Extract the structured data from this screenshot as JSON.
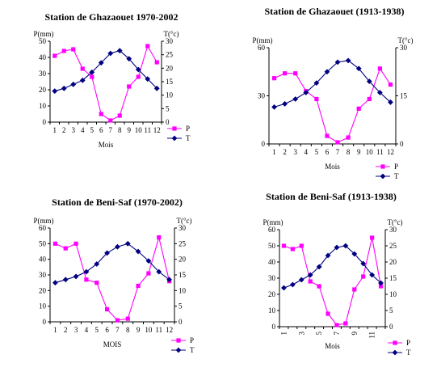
{
  "chart_data": [
    {
      "type": "line",
      "title": "Station de Ghazaouet 1970-2002",
      "xlabel": "Mois",
      "ylabel_left": "P(mm)",
      "ylabel_right": "T(°c)",
      "categories": [
        "1",
        "2",
        "3",
        "4",
        "5",
        "6",
        "7",
        "8",
        "9",
        "10",
        "11",
        "12"
      ],
      "ylim_left": [
        0,
        50
      ],
      "ystep_left": 10,
      "ylim_right": [
        0,
        30
      ],
      "ystep_right": 5,
      "grid": false,
      "legend_position": "bottom-right",
      "series": [
        {
          "name": "P",
          "axis": "left",
          "color": "#ff00ff",
          "marker": "square",
          "values": [
            41,
            44,
            45,
            33,
            28,
            5,
            1,
            4,
            22,
            28,
            47,
            37
          ]
        },
        {
          "name": "T",
          "axis": "right",
          "color": "#000080",
          "marker": "diamond",
          "values": [
            11.5,
            12.5,
            14,
            15.5,
            18.5,
            22,
            25.5,
            26.5,
            23.5,
            19.5,
            16,
            12.5
          ]
        }
      ]
    },
    {
      "type": "line",
      "title": "Station de Ghazaouet (1913-1938)",
      "xlabel": "Mois",
      "ylabel_left": "P(mm)",
      "ylabel_right": "T(°c)",
      "categories": [
        "1",
        "2",
        "3",
        "4",
        "5",
        "6",
        "7",
        "8",
        "9",
        "10",
        "11",
        "12"
      ],
      "ylim_left": [
        0,
        60
      ],
      "ystep_left": 30,
      "ylim_right": [
        0,
        30
      ],
      "ystep_right": 15,
      "grid": false,
      "legend_position": "bottom-right",
      "series": [
        {
          "name": "P",
          "axis": "left",
          "color": "#ff00ff",
          "marker": "square",
          "values": [
            41,
            44,
            44,
            33,
            28,
            5,
            1,
            4,
            22,
            28,
            47,
            37
          ]
        },
        {
          "name": "T",
          "axis": "right",
          "color": "#000080",
          "marker": "diamond",
          "values": [
            11.5,
            12.5,
            14,
            16,
            19,
            22.5,
            25.5,
            26,
            23.5,
            19.5,
            16,
            13
          ]
        }
      ]
    },
    {
      "type": "line",
      "title": "Station de Beni-Saf (1970-2002)",
      "xlabel": "MOIS",
      "ylabel_left": "P(mm)",
      "ylabel_right": "T(°c)",
      "categories": [
        "1",
        "2",
        "3",
        "4",
        "5",
        "6",
        "7",
        "8",
        "9",
        "10",
        "11",
        "12"
      ],
      "ylim_left": [
        0,
        60
      ],
      "ystep_left": 10,
      "ylim_right": [
        0,
        30
      ],
      "ystep_right": 5,
      "grid": false,
      "legend_position": "bottom-right",
      "series": [
        {
          "name": "P",
          "axis": "left",
          "color": "#ff00ff",
          "marker": "square",
          "values": [
            50,
            47,
            50,
            27,
            25,
            8,
            1,
            2,
            23,
            31,
            54,
            26
          ]
        },
        {
          "name": "T",
          "axis": "right",
          "color": "#000080",
          "marker": "diamond",
          "values": [
            12.5,
            13.5,
            14.5,
            16,
            18.5,
            22,
            24,
            25,
            22.5,
            19.5,
            16,
            13.5
          ]
        }
      ]
    },
    {
      "type": "line",
      "title": "Station de Beni-Saf (1913-1938)",
      "xlabel": "Mois",
      "ylabel_left": "P(mm)",
      "ylabel_right": "T(°c)",
      "categories": [
        "1",
        "2",
        "3",
        "4",
        "5",
        "6",
        "7",
        "8",
        "9",
        "10",
        "11",
        "12"
      ],
      "tick_labels": [
        "1",
        "",
        "3",
        "",
        "5",
        "",
        "7",
        "",
        "9",
        "",
        "11",
        ""
      ],
      "ylim_left": [
        0,
        60
      ],
      "ystep_left": 10,
      "ylim_right": [
        0,
        30
      ],
      "ystep_right": 5,
      "grid": false,
      "legend_position": "bottom-right",
      "series": [
        {
          "name": "P",
          "axis": "left",
          "color": "#ff00ff",
          "marker": "square",
          "values": [
            50,
            48,
            50,
            28,
            25,
            8,
            1,
            2,
            23,
            31,
            55,
            25
          ]
        },
        {
          "name": "T",
          "axis": "right",
          "color": "#000080",
          "marker": "diamond",
          "values": [
            12,
            13,
            14.5,
            16,
            18.5,
            22,
            24.5,
            25,
            22.5,
            19.5,
            16,
            13.5
          ]
        }
      ]
    }
  ]
}
